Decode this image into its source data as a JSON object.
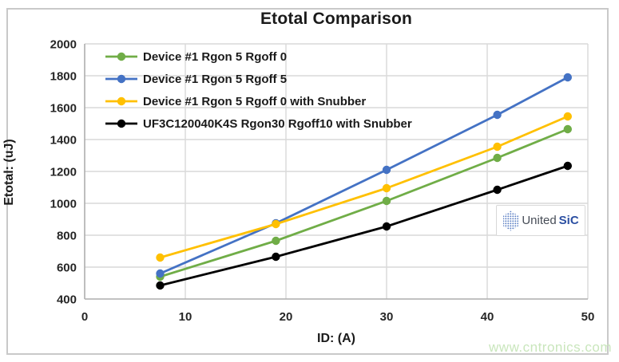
{
  "chart_data": {
    "type": "line",
    "title": "Etotal Comparison",
    "xlabel": "ID: (A)",
    "ylabel": "Etotal: (uJ)",
    "xlim": [
      0,
      50
    ],
    "ylim": [
      400,
      2000
    ],
    "x_ticks": [
      0,
      10,
      20,
      30,
      40,
      50
    ],
    "y_ticks": [
      400,
      600,
      800,
      1000,
      1200,
      1400,
      1600,
      1800,
      2000
    ],
    "grid": true,
    "legend_position": "top-left",
    "x": [
      7.5,
      19,
      30,
      41,
      48
    ],
    "series": [
      {
        "name": "Device #1 Rgon 5 Rgoff 0",
        "color": "#70ad47",
        "values": [
          540,
          765,
          1015,
          1285,
          1465
        ]
      },
      {
        "name": "Device #1 Rgon 5 Rgoff 5",
        "color": "#4472c4",
        "values": [
          560,
          875,
          1210,
          1555,
          1790
        ]
      },
      {
        "name": "Device #1 Rgon 5 Rgoff 0 with Snubber",
        "color": "#ffc000",
        "values": [
          660,
          870,
          1095,
          1355,
          1545
        ]
      },
      {
        "name": "UF3C120040K4S Rgon30 Rgoff10 with Snubber",
        "color": "#000000",
        "values": [
          485,
          665,
          855,
          1085,
          1235
        ]
      }
    ],
    "colors": {
      "gridline": "#d9d9d9",
      "axis": "#aeaeae"
    }
  },
  "branding": {
    "logo_united": "United",
    "logo_sic": "SiC",
    "logo_sic_color": "#2b4fa2",
    "logo_dot_color": "#5b7fc4",
    "watermark": "www.cntronics.com",
    "watermark_color": "#c9e6bc"
  }
}
